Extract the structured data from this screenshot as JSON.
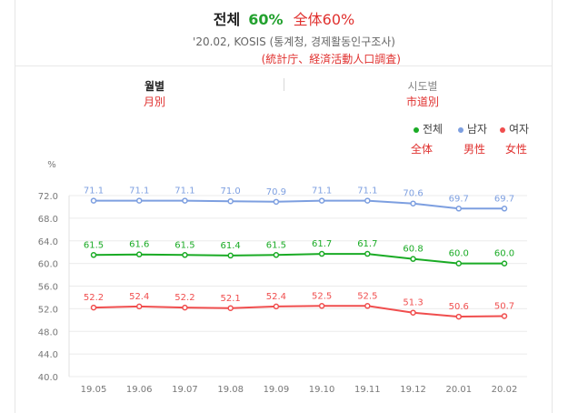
{
  "header": {
    "title": "전체",
    "title_value": "60%",
    "title_note": "全体60%",
    "source": "'20.02, KOSIS (통계청, 경제활동인구조사)",
    "source_note": "(統計庁、経済活動人口調査)"
  },
  "tabs": [
    {
      "label": "월별",
      "note": "月別",
      "active": true
    },
    {
      "label": "시도별",
      "note": "市道別",
      "active": false
    }
  ],
  "legend": [
    {
      "label": "전체",
      "note": "全体",
      "color": "#1aab25"
    },
    {
      "label": "남자",
      "note": "男性",
      "color": "#7d9fe0"
    },
    {
      "label": "여자",
      "note": "女性",
      "color": "#f04e4e"
    }
  ],
  "chart_data": {
    "type": "line",
    "unit_label": "%",
    "categories": [
      "19.05",
      "19.06",
      "19.07",
      "19.08",
      "19.09",
      "19.10",
      "19.11",
      "19.12",
      "20.01",
      "20.02"
    ],
    "y_ticks": [
      "40.0",
      "44.0",
      "48.0",
      "52.0",
      "56.0",
      "60.0",
      "64.0",
      "68.0",
      "72.0"
    ],
    "ylim": [
      40,
      72
    ],
    "grid": true,
    "legend_position": "top-right",
    "series": [
      {
        "name": "남자",
        "color": "#7d9fe0",
        "values": [
          71.1,
          71.1,
          71.1,
          71.0,
          70.9,
          71.1,
          71.1,
          70.6,
          69.7,
          69.7
        ],
        "labels": [
          "71.1",
          "71.1",
          "71.1",
          "71.0",
          "70.9",
          "71.1",
          "71.1",
          "70.6",
          "69.7",
          "69.7"
        ]
      },
      {
        "name": "전체",
        "color": "#1aab25",
        "values": [
          61.5,
          61.6,
          61.5,
          61.4,
          61.5,
          61.7,
          61.7,
          60.8,
          60.0,
          60.0
        ],
        "labels": [
          "61.5",
          "61.6",
          "61.5",
          "61.4",
          "61.5",
          "61.7",
          "61.7",
          "60.8",
          "60.0",
          "60.0"
        ]
      },
      {
        "name": "여자",
        "color": "#f04e4e",
        "values": [
          52.2,
          52.4,
          52.2,
          52.1,
          52.4,
          52.5,
          52.5,
          51.3,
          50.6,
          50.7
        ],
        "labels": [
          "52.2",
          "52.4",
          "52.2",
          "52.1",
          "52.4",
          "52.5",
          "52.5",
          "51.3",
          "50.6",
          "50.7"
        ]
      }
    ]
  }
}
